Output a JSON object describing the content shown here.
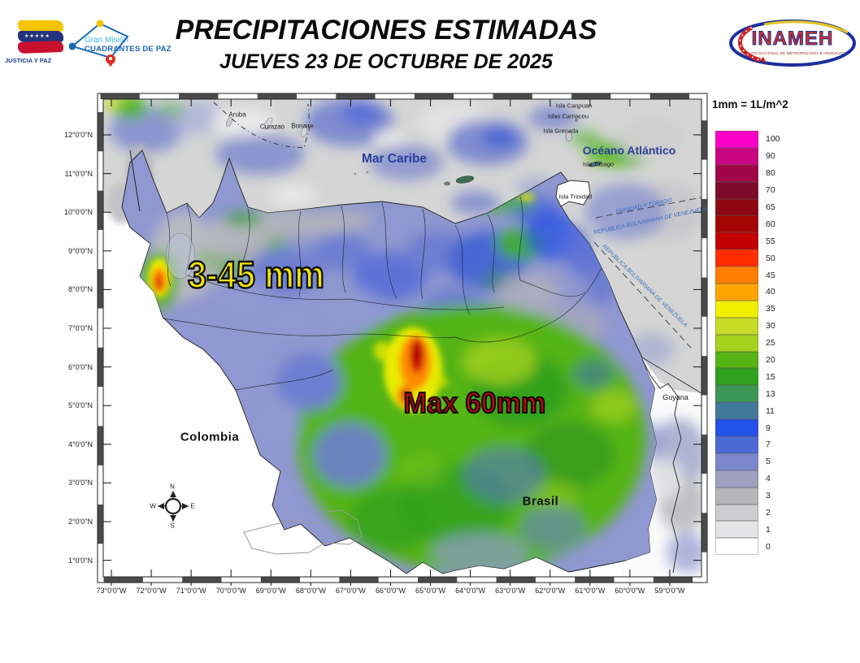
{
  "header": {
    "title": "PRECIPITACIONES ESTIMADAS",
    "subtitle": "JUEVES 23 DE OCTUBRE DE 2025",
    "flag_caption": "JUSTICIA Y PAZ",
    "mission_line1": "Gran Misión",
    "mission_line2": "CUADRANTES DE PAZ",
    "inameh_name": "INAMEH",
    "inameh_sub": "INSTITUTO NACIONAL DE METEOROLOGÍA E HIDROLOGÍA"
  },
  "legend": {
    "units_label": "1mm = 1L/m^2",
    "entries": [
      {
        "value": "100",
        "color": "#fa00c8"
      },
      {
        "value": "90",
        "color": "#c80582"
      },
      {
        "value": "80",
        "color": "#a0054a"
      },
      {
        "value": "70",
        "color": "#7d0a28"
      },
      {
        "value": "65",
        "color": "#8c0711"
      },
      {
        "value": "60",
        "color": "#a30505"
      },
      {
        "value": "55",
        "color": "#c30000"
      },
      {
        "value": "50",
        "color": "#ff2d00"
      },
      {
        "value": "45",
        "color": "#ff7d00"
      },
      {
        "value": "40",
        "color": "#ffa600"
      },
      {
        "value": "35",
        "color": "#f0f000"
      },
      {
        "value": "30",
        "color": "#c8dc28"
      },
      {
        "value": "25",
        "color": "#a5d21e"
      },
      {
        "value": "20",
        "color": "#55b414"
      },
      {
        "value": "15",
        "color": "#2fa01e"
      },
      {
        "value": "13",
        "color": "#3c9655"
      },
      {
        "value": "11",
        "color": "#41799b"
      },
      {
        "value": "9",
        "color": "#2350e6"
      },
      {
        "value": "7",
        "color": "#4e69d2"
      },
      {
        "value": "5",
        "color": "#7d87ce"
      },
      {
        "value": "4",
        "color": "#9ea2c0"
      },
      {
        "value": "3",
        "color": "#b6b6ba"
      },
      {
        "value": "2",
        "color": "#cdcdd0"
      },
      {
        "value": "1",
        "color": "#e5e5e7"
      },
      {
        "value": "0",
        "color": "#ffffff"
      }
    ]
  },
  "map": {
    "lat_labels": [
      "12°0'0\"N",
      "11°0'0\"N",
      "10°0'0\"N",
      "9°0'0\"N",
      "8°0'0\"N",
      "7°0'0\"N",
      "6°0'0\"N",
      "5°0'0\"N",
      "4°0'0\"N",
      "3°0'0\"N",
      "2°0'0\"N",
      "1°0'0\"N"
    ],
    "lon_labels": [
      "73°0'0\"W",
      "72°0'0\"W",
      "71°0'0\"W",
      "70°0'0\"W",
      "69°0'0\"W",
      "68°0'0\"W",
      "67°0'0\"W",
      "66°0'0\"W",
      "65°0'0\"W",
      "64°0'0\"W",
      "63°0'0\"W",
      "62°0'0\"W",
      "61°0'0\"W",
      "60°0'0\"W",
      "59°0'0\"W"
    ],
    "labels": {
      "mar_caribe": "Mar Caribe",
      "oceano_atlantico": "Océano Atlántico",
      "isla_canouan": "Isla Canouan",
      "islas_carriacou": "Islas Carriacou",
      "isla_grenada": "Isla Grenada",
      "isla_tobago": "Isla Tobago",
      "isla_trinidad": "Isla Trinidad",
      "aruba": "Aruba",
      "curazao": "Curazao",
      "bonaire": "Bonaire",
      "colombia": "Colombia",
      "brasil": "Brasil",
      "guyana": "Guyana",
      "boundary_trinidad": "TRINIDAD Y TOBAGO",
      "boundary_venezuela": "REPUBLICA BOLIVARIANA DE VENEZUELA"
    },
    "annotations": {
      "range": "3-45 mm",
      "max": "Max 60mm"
    },
    "compass": {
      "n": "N",
      "s": "S",
      "e": "E",
      "w": "W"
    }
  },
  "colors": {
    "annotation_range": "#f2e50a",
    "annotation_max": "#ab0f0f",
    "sea_label": "#2b3f9c"
  }
}
